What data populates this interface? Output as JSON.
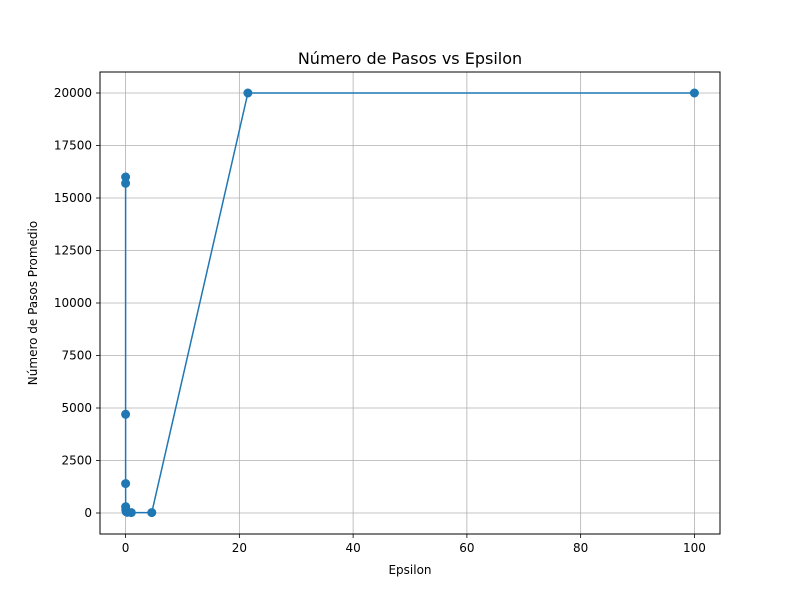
{
  "chart_data": {
    "type": "line",
    "title": "Número de Pasos vs Epsilon",
    "xlabel": "Epsilon",
    "ylabel": "Número de Pasos Promedio",
    "xlim": [
      -4.5,
      104.5
    ],
    "ylim": [
      -1000,
      21000
    ],
    "xticks": [
      0,
      20,
      40,
      60,
      80,
      100
    ],
    "yticks": [
      0,
      2500,
      5000,
      7500,
      10000,
      12500,
      15000,
      17500,
      20000
    ],
    "grid": true,
    "series": [
      {
        "color": "#1f77b4",
        "marker": "circle",
        "x": [
          0.0001,
          0.0003,
          0.001,
          0.003,
          0.01,
          0.03,
          0.1,
          0.3,
          1,
          4.6,
          21.5,
          100
        ],
        "y": [
          16000,
          15700,
          4700,
          1400,
          300,
          150,
          60,
          30,
          20,
          20,
          20000,
          20000
        ]
      }
    ]
  }
}
